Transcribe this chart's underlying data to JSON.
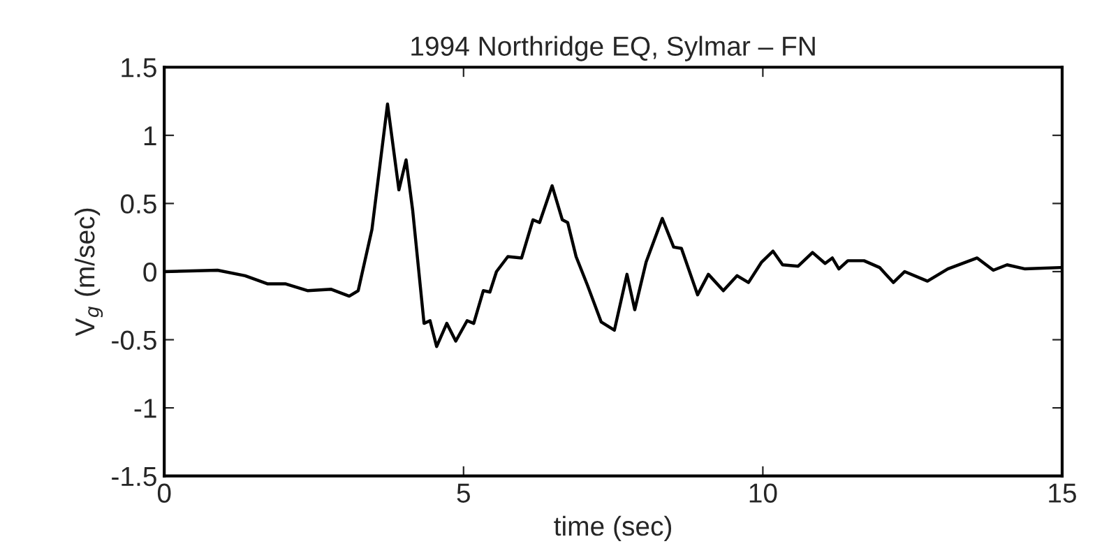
{
  "chart_data": {
    "type": "line",
    "title": "1994 Northridge EQ, Sylmar – FN",
    "xlabel": "time (sec)",
    "ylabel": "V$_{g}$ (m/sec)",
    "xlim": [
      0,
      15
    ],
    "ylim": [
      -1.5,
      1.5
    ],
    "xticks": [
      0,
      5,
      10,
      15
    ],
    "yticks": [
      -1.5,
      -1,
      -0.5,
      0,
      0.5,
      1,
      1.5
    ],
    "grid": false,
    "legend": false,
    "series": [
      {
        "color": "#000000",
        "x": [
          0,
          0.89,
          1.35,
          1.73,
          2.03,
          2.4,
          2.79,
          3.09,
          3.24,
          3.47,
          3.73,
          3.92,
          4.04,
          4.15,
          4.34,
          4.44,
          4.55,
          4.72,
          4.87,
          5.06,
          5.17,
          5.33,
          5.44,
          5.55,
          5.74,
          5.97,
          6.16,
          6.27,
          6.48,
          6.65,
          6.74,
          6.88,
          7.07,
          7.3,
          7.52,
          7.73,
          7.86,
          8.05,
          8.32,
          8.51,
          8.64,
          8.91,
          9.09,
          9.34,
          9.57,
          9.76,
          9.98,
          10.17,
          10.33,
          10.59,
          10.83,
          11.04,
          11.16,
          11.27,
          11.42,
          11.69,
          11.95,
          12.18,
          12.37,
          12.75,
          13.09,
          13.58,
          13.85,
          14.08,
          14.38,
          14.98
        ],
        "values": [
          0,
          0.01,
          -0.03,
          -0.09,
          -0.09,
          -0.14,
          -0.13,
          -0.18,
          -0.14,
          0.31,
          1.23,
          0.6,
          0.82,
          0.45,
          -0.38,
          -0.36,
          -0.55,
          -0.38,
          -0.51,
          -0.36,
          -0.38,
          -0.14,
          -0.15,
          0,
          0.11,
          0.1,
          0.38,
          0.36,
          0.63,
          0.38,
          0.36,
          0.11,
          -0.1,
          -0.37,
          -0.43,
          -0.02,
          -0.28,
          0.07,
          0.39,
          0.18,
          0.17,
          -0.17,
          -0.02,
          -0.14,
          -0.03,
          -0.08,
          0.07,
          0.15,
          0.05,
          0.04,
          0.14,
          0.06,
          0.1,
          0.02,
          0.08,
          0.08,
          0.03,
          -0.08,
          0,
          -0.07,
          0.02,
          0.1,
          0.01,
          0.05,
          0.02,
          0.03
        ]
      }
    ]
  }
}
